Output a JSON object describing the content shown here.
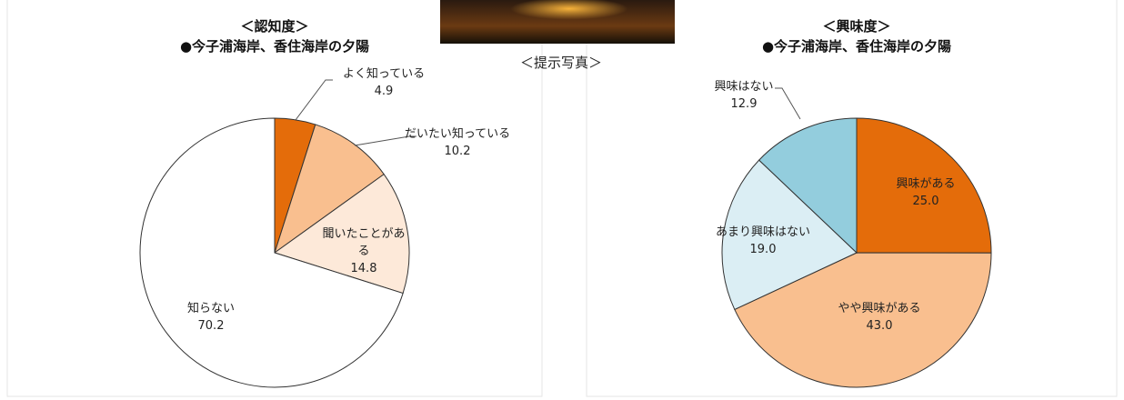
{
  "chart_data": [
    {
      "type": "pie",
      "title": "＜認知度＞",
      "subtitle": "●今子浦海岸、香住海岸の夕陽",
      "categories": [
        "よく知っている",
        "だいたい知っている",
        "聞いたことがある",
        "知らない"
      ],
      "values": [
        4.9,
        10.2,
        14.8,
        70.2
      ],
      "colors": [
        "#e46c0a",
        "#f9bf8f",
        "#fde9d9",
        "#ffffff"
      ]
    },
    {
      "type": "pie",
      "title": "＜興味度＞",
      "subtitle": "●今子浦海岸、香住海岸の夕陽",
      "categories": [
        "興味がある",
        "やや興味がある",
        "あまり興味はない",
        "興味はない"
      ],
      "values": [
        25,
        43,
        19,
        12.9
      ],
      "value_labels": [
        "25.0",
        "43.0",
        "19.0",
        "12.9"
      ],
      "colors": [
        "#e46c0a",
        "#f9bf8f",
        "#dbeef4",
        "#93cddd"
      ]
    }
  ],
  "photo": {
    "caption": "＜提示写真＞"
  }
}
